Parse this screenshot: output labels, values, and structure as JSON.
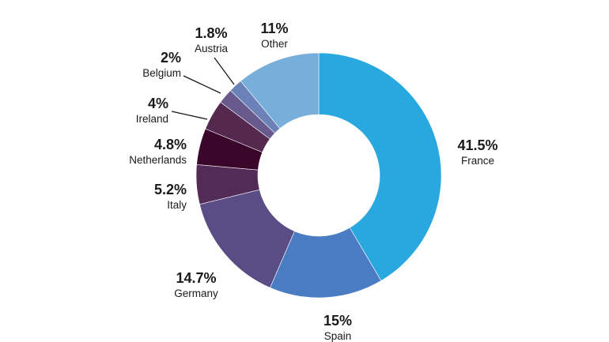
{
  "chart_data": {
    "type": "pie",
    "variant": "donut",
    "title": "",
    "slices": [
      {
        "name": "France",
        "value": 41.5,
        "display_value": "41.5%",
        "color": "#29A8E0"
      },
      {
        "name": "Spain",
        "value": 15,
        "display_value": "15%",
        "color": "#4A7CC4"
      },
      {
        "name": "Germany",
        "value": 14.7,
        "display_value": "14.7%",
        "color": "#5A4D85"
      },
      {
        "name": "Italy",
        "value": 5.2,
        "display_value": "5.2%",
        "color": "#532B57"
      },
      {
        "name": "Netherlands",
        "value": 4.8,
        "display_value": "4.8%",
        "color": "#3A0629"
      },
      {
        "name": "Ireland",
        "value": 4,
        "display_value": "4%",
        "color": "#55284F"
      },
      {
        "name": "Belgium",
        "value": 2,
        "display_value": "2%",
        "color": "#685A8C"
      },
      {
        "name": "Austria",
        "value": 1.8,
        "display_value": "1.8%",
        "color": "#6B82B8"
      },
      {
        "name": "Other",
        "value": 11,
        "display_value": "11%",
        "color": "#78AEDA"
      }
    ],
    "start": "12 o'clock",
    "direction": "clockwise"
  }
}
